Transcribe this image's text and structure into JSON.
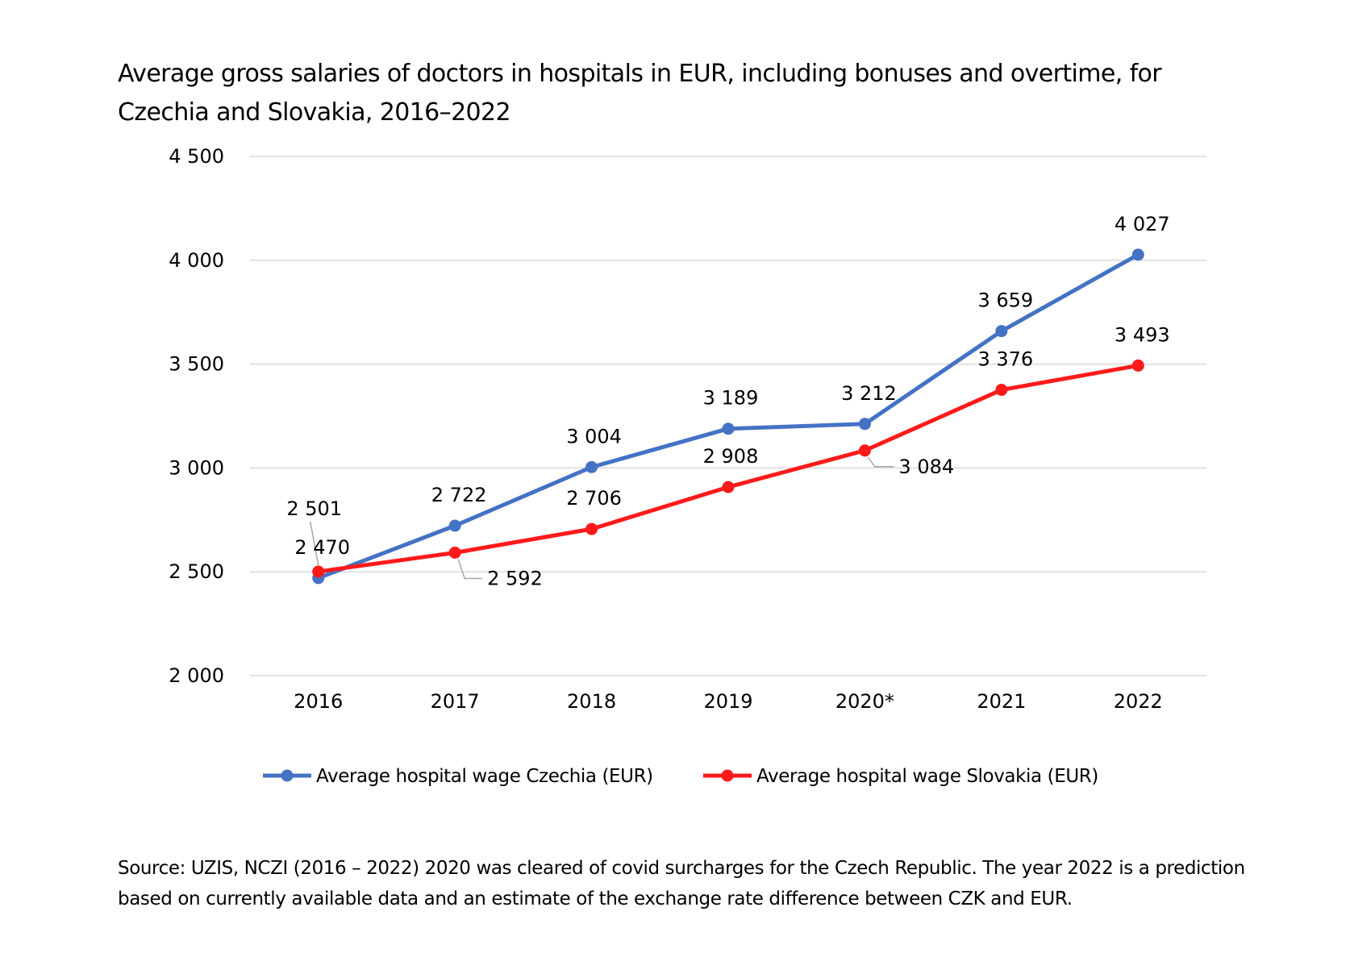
{
  "chart_data": {
    "type": "line",
    "title": "Average gross salaries of doctors in hospitals in EUR, including bonuses and overtime, for Czechia and Slovakia, 2016–2022",
    "categories": [
      "2016",
      "2017",
      "2018",
      "2019",
      "2020*",
      "2021",
      "2022"
    ],
    "series": [
      {
        "name": "Average hospital wage Czechia (EUR)",
        "color": "#4472C4",
        "values": [
          2470,
          2722,
          3004,
          3189,
          3212,
          3659,
          4027
        ],
        "labels": [
          "2 470",
          "2 722",
          "3 004",
          "3 189",
          "3 212",
          "3 659",
          "4 027"
        ]
      },
      {
        "name": "Average hospital wage Slovakia (EUR)",
        "color": "#FF1A1A",
        "values": [
          2501,
          2592,
          2706,
          2908,
          3084,
          3376,
          3493
        ],
        "labels": [
          "2 501",
          "2 592",
          "2 706",
          "2 908",
          "3 084",
          "3 376",
          "3 493"
        ]
      }
    ],
    "ylim": [
      2000,
      4500
    ],
    "yticks": [
      2000,
      2500,
      3000,
      3500,
      4000,
      4500
    ],
    "ytick_labels": [
      "2 000",
      "2 500",
      "3 000",
      "3 500",
      "4 000",
      "4 500"
    ],
    "grid": true,
    "legend_position": "bottom"
  },
  "source_note": "Source: UZIS, NCZI (2016 – 2022) 2020 was cleared of covid surcharges for the Czech Republic. The year 2022 is a prediction based on currently available data and an estimate of the exchange rate difference between CZK and EUR."
}
